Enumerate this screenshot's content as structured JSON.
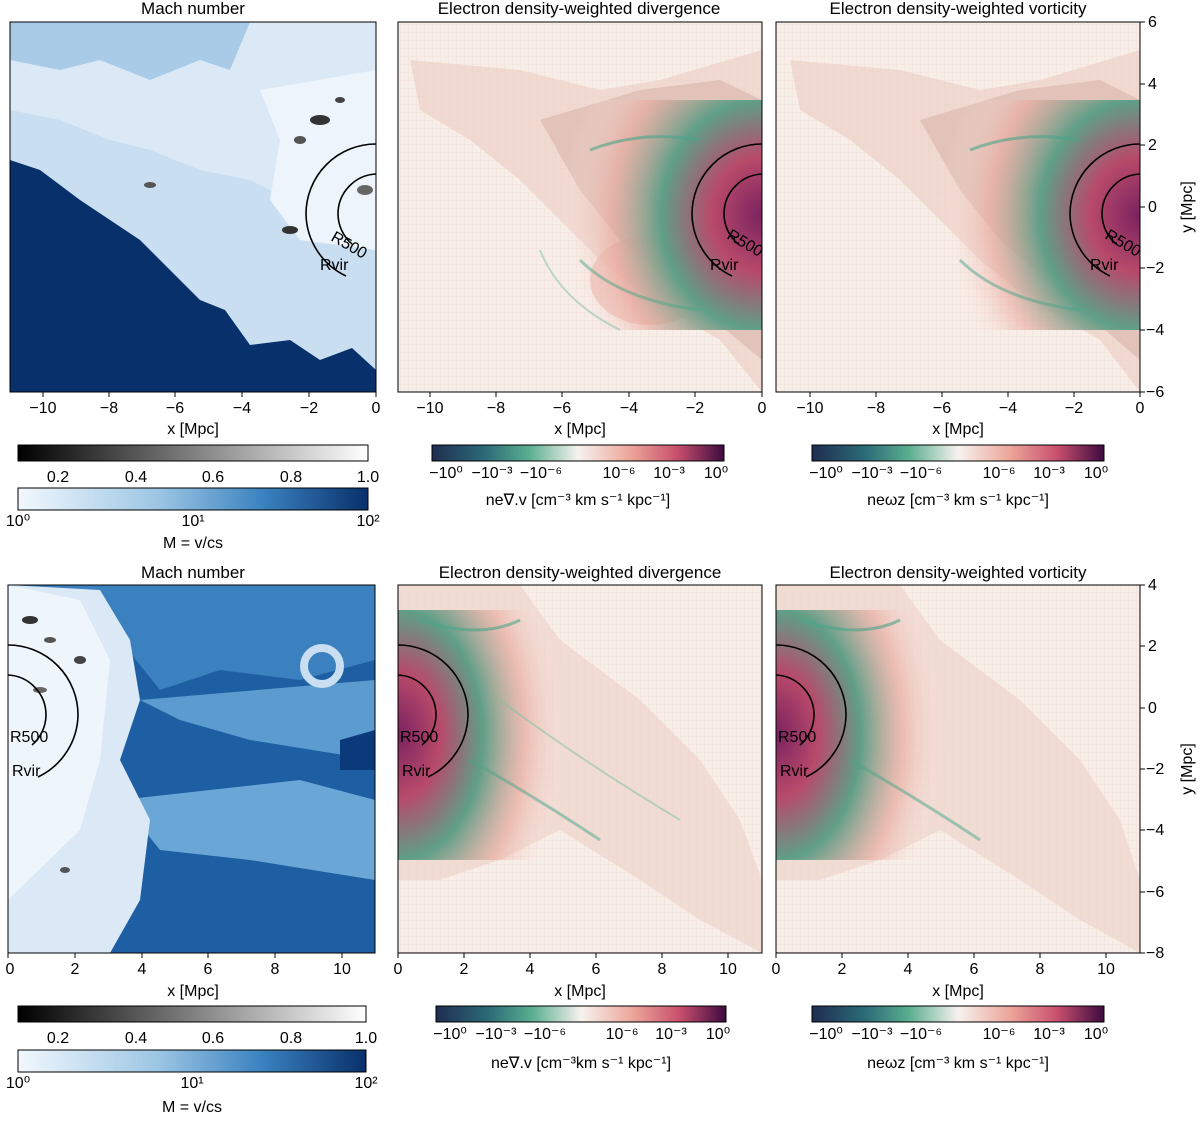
{
  "figure": {
    "rows": [
      {
        "panels": [
          {
            "title": "Mach number",
            "xlabel": "x [Mpc]",
            "xticks": [
              "−10",
              "−8",
              "−6",
              "−4",
              "−2",
              "0"
            ],
            "style": "mach"
          },
          {
            "title": "Electron density-weighted divergence",
            "xlabel": "x [Mpc]",
            "xticks": [
              "−10",
              "−8",
              "−6",
              "−4",
              "−2",
              "0"
            ],
            "style": "div"
          },
          {
            "title": "Electron density-weighted vorticity",
            "xlabel": "x [Mpc]",
            "xticks": [
              "−10",
              "−8",
              "−6",
              "−4",
              "−2",
              "0"
            ],
            "style": "vort"
          }
        ],
        "ylabel": "y [Mpc]",
        "yticks": [
          "6",
          "4",
          "2",
          "0",
          "−2",
          "−4",
          "−6"
        ],
        "radii": {
          "r500": "R500",
          "rvir": "Rvir"
        }
      },
      {
        "panels": [
          {
            "title": "Mach number",
            "xlabel": "x [Mpc]",
            "xticks": [
              "0",
              "2",
              "4",
              "6",
              "8",
              "10"
            ],
            "style": "mach"
          },
          {
            "title": "Electron density-weighted divergence",
            "xlabel": "x [Mpc]",
            "xticks": [
              "0",
              "2",
              "4",
              "6",
              "8",
              "10"
            ],
            "style": "div"
          },
          {
            "title": "Electron density-weighted vorticity",
            "xlabel": "x [Mpc]",
            "xticks": [
              "0",
              "2",
              "4",
              "6",
              "8",
              "10"
            ],
            "style": "vort"
          }
        ],
        "ylabel": "y [Mpc]",
        "yticks": [
          "4",
          "2",
          "0",
          "−2",
          "−4",
          "−6",
          "−8"
        ],
        "radii": {
          "r500": "R500",
          "rvir": "Rvir"
        }
      }
    ],
    "colorbars": {
      "gray_ticks": [
        "0.2",
        "0.4",
        "0.6",
        "0.8",
        "1.0"
      ],
      "blue_ticks": [
        "10⁰",
        "10¹",
        "10²"
      ],
      "mach_label": "M = v/cs",
      "div_label_top": "ne∇.v [cm⁻³ km s⁻¹ kpc⁻¹]",
      "div_label_bottom": "ne∇.v [cm⁻³km s⁻¹ kpc⁻¹]",
      "vort_label": "neωz [cm⁻³ km s⁻¹ kpc⁻¹]",
      "div_ticks": [
        "−10⁰",
        "−10⁻³",
        "−10⁻⁶",
        "10⁻⁶",
        "10⁻³",
        "10⁰"
      ]
    },
    "colors": {
      "mach_dark": "#08306b",
      "mach_mid": "#4a90c8",
      "mach_light": "#eaf3fb",
      "div_neg": "#1f3b63",
      "div_green": "#4aa58a",
      "div_center": "#f8eee8",
      "div_pink": "#e3867f",
      "div_pos": "#5a0f4a"
    }
  }
}
